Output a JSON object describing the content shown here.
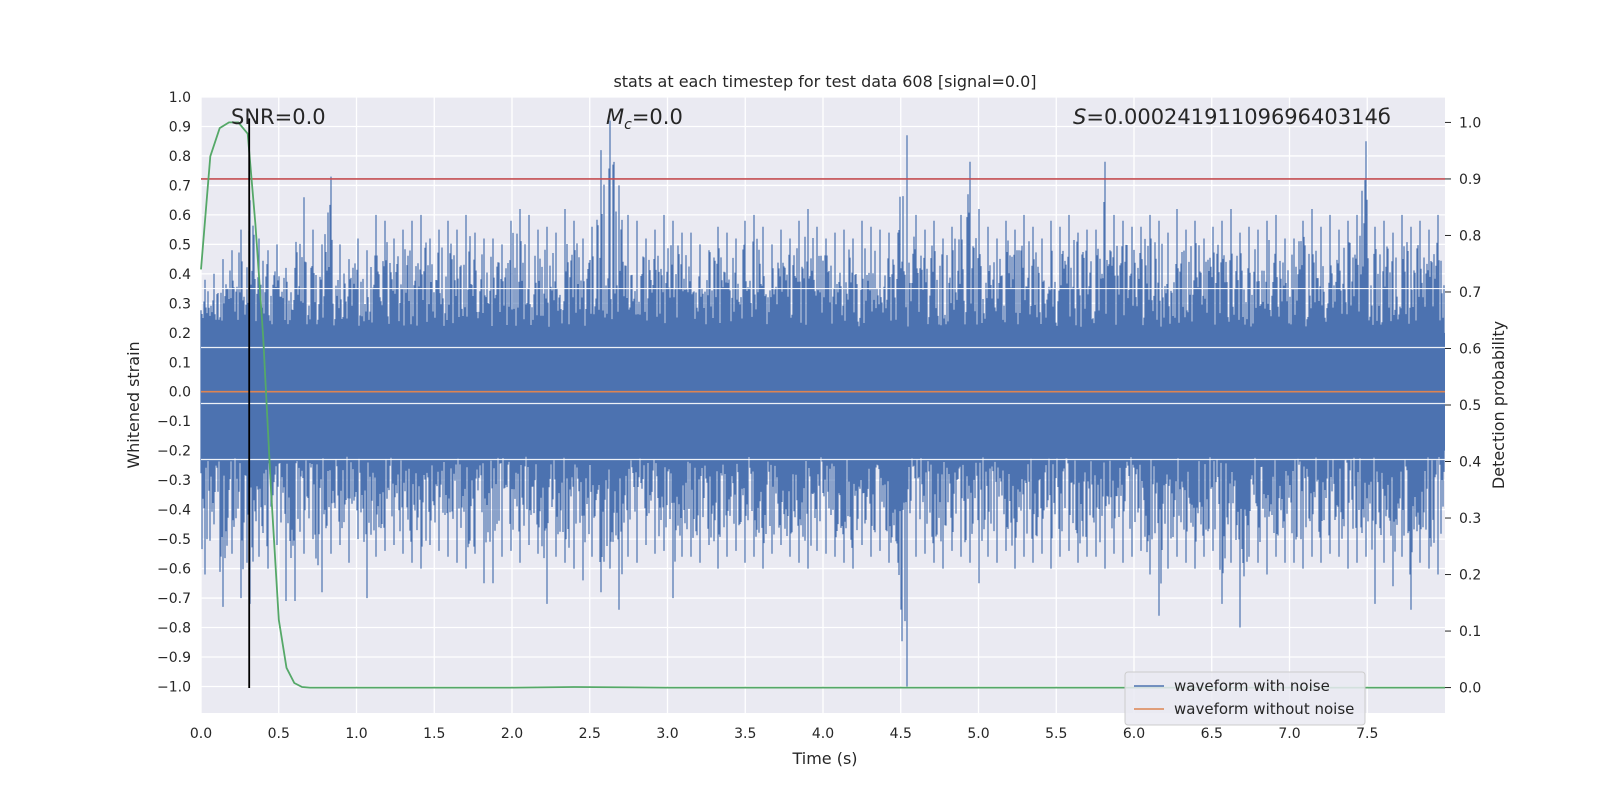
{
  "chart_data": {
    "type": "line",
    "title": "stats at each timestep for test data 608 [signal=0.0]",
    "xlabel": "Time (s)",
    "ylabel": "Whitened strain",
    "y2label": "Detection probability",
    "xlim": [
      0.0,
      8.0
    ],
    "ylim": [
      -1.09,
      1.0
    ],
    "y2lim": [
      -0.045,
      1.045
    ],
    "xticks": [
      "0.0",
      "0.5",
      "1.0",
      "1.5",
      "2.0",
      "2.5",
      "3.0",
      "3.5",
      "4.0",
      "4.5",
      "5.0",
      "5.5",
      "6.0",
      "6.5",
      "7.0",
      "7.5"
    ],
    "yticks": [
      "1.0",
      "0.9",
      "0.8",
      "0.7",
      "0.6",
      "0.5",
      "0.4",
      "0.3",
      "0.2",
      "0.1",
      "0.0",
      "−0.1",
      "−0.2",
      "−0.3",
      "−0.4",
      "−0.5",
      "−0.6",
      "−0.7",
      "−0.8",
      "−0.9",
      "−1.0"
    ],
    "y2ticks": [
      "0.0",
      "0.1",
      "0.2",
      "0.3",
      "0.4",
      "0.5",
      "0.6",
      "0.7",
      "0.8",
      "0.9",
      "1.0"
    ],
    "annotations": {
      "snr": "SNR=0.0",
      "mc_symbol": "M",
      "mc_sub": "c",
      "mc_rest": "=0.0",
      "s_symbol": "S",
      "s_rest": "=0.0002419110969640314б"
    },
    "threshold": {
      "probability": 0.9,
      "color": "#c44e52"
    },
    "marker_time": 0.31,
    "series": [
      {
        "name": "waveform with noise",
        "color": "#4c72b0",
        "description": "whitened strain, dense noise band",
        "envelope_top": [
          0.38,
          0.4,
          0.45,
          0.48,
          0.55,
          0.65,
          0.52,
          0.48,
          0.5,
          0.42,
          0.66,
          0.55,
          0.5,
          0.73,
          0.5,
          0.45,
          0.52,
          0.48,
          0.6,
          0.58,
          0.52,
          0.55,
          0.58,
          0.6,
          0.52,
          0.55,
          0.58,
          0.55,
          0.6,
          0.54,
          0.52,
          0.5,
          0.58,
          0.62,
          0.6,
          0.55,
          0.56,
          0.54,
          0.62,
          0.58,
          0.52,
          0.56,
          0.82,
          0.92,
          0.7,
          0.6,
          0.58,
          0.52,
          0.55,
          0.6,
          0.58,
          0.54,
          0.5,
          0.48,
          0.56,
          0.54,
          0.52,
          0.58,
          0.6,
          0.56,
          0.5,
          0.55,
          0.52,
          0.58,
          0.62,
          0.56,
          0.52,
          0.54,
          0.55,
          0.52,
          0.58,
          0.56,
          0.55,
          0.54,
          0.87,
          0.6,
          0.55,
          0.58,
          0.52,
          0.56,
          0.6,
          0.78,
          0.62,
          0.56,
          0.52,
          0.58,
          0.55,
          0.6,
          0.56,
          0.52,
          0.58,
          0.56,
          0.6,
          0.54,
          0.55,
          0.78,
          0.6,
          0.58,
          0.56,
          0.56,
          0.6,
          0.58,
          0.54,
          0.62,
          0.55,
          0.58,
          0.52,
          0.56,
          0.58,
          0.62,
          0.54,
          0.56,
          0.55,
          0.58,
          0.6,
          0.52,
          0.58,
          0.62,
          0.56,
          0.6,
          0.55,
          0.58,
          0.6,
          0.85,
          0.56,
          0.58,
          0.54,
          0.6,
          0.56,
          0.58,
          0.55,
          0.6
        ],
        "envelope_bottom": [
          -0.62,
          -0.45,
          -0.73,
          -0.55,
          -0.7,
          -0.72,
          -0.56,
          -0.6,
          -0.52,
          -0.71,
          -0.55,
          -0.5,
          -0.68,
          -0.55,
          -0.52,
          -0.58,
          -0.5,
          -0.7,
          -0.56,
          -0.54,
          -0.52,
          -0.55,
          -0.58,
          -0.6,
          -0.52,
          -0.54,
          -0.56,
          -0.58,
          -0.6,
          -0.55,
          -0.65,
          -0.56,
          -0.54,
          -0.58,
          -0.52,
          -0.55,
          -0.72,
          -0.56,
          -0.58,
          -0.6,
          -0.64,
          -0.56,
          -0.68,
          -0.6,
          -0.74,
          -0.56,
          -0.58,
          -0.52,
          -0.55,
          -0.54,
          -0.7,
          -0.56,
          -0.58,
          -0.52,
          -0.6,
          -0.56,
          -0.54,
          -0.58,
          -0.56,
          -0.6,
          -0.55,
          -0.52,
          -0.56,
          -0.58,
          -0.6,
          -0.54,
          -0.55,
          -0.56,
          -0.58,
          -0.6,
          -0.52,
          -0.56,
          -0.54,
          -0.58,
          -1.0,
          -0.56,
          -0.55,
          -0.58,
          -0.6,
          -0.54,
          -0.56,
          -0.58,
          -0.65,
          -0.56,
          -0.58,
          -0.54,
          -0.6,
          -0.56,
          -0.58,
          -0.55,
          -0.6,
          -0.56,
          -0.54,
          -0.58,
          -0.56,
          -0.6,
          -0.55,
          -0.58,
          -0.56,
          -0.54,
          -0.62,
          -0.76,
          -0.6,
          -0.56,
          -0.58,
          -0.6,
          -0.56,
          -0.54,
          -0.72,
          -0.58,
          -0.8,
          -0.56,
          -0.58,
          -0.62,
          -0.56,
          -0.58,
          -0.6,
          -0.56,
          -0.58,
          -0.55,
          -0.56,
          -0.6,
          -0.58,
          -0.56,
          -0.72,
          -0.58,
          -0.66,
          -0.56,
          -0.74,
          -0.58,
          -0.6,
          -0.62
        ]
      },
      {
        "name": "waveform without noise",
        "color": "#dd8452",
        "description": "flat at 0.0",
        "y": 0.0
      },
      {
        "name": "detection probability",
        "color": "#55a868",
        "axis": "right",
        "x": [
          0.0,
          0.06,
          0.12,
          0.18,
          0.24,
          0.3,
          0.35,
          0.4,
          0.45,
          0.5,
          0.55,
          0.6,
          0.65,
          0.7,
          1.0,
          2.0,
          2.4,
          3.0,
          4.0,
          5.0,
          6.0,
          7.0,
          8.0
        ],
        "y": [
          0.74,
          0.94,
          0.99,
          1.0,
          1.0,
          0.98,
          0.82,
          0.62,
          0.35,
          0.12,
          0.035,
          0.008,
          0.001,
          0.0,
          0.0,
          0.0,
          0.001,
          0.0,
          0.0,
          0.0,
          0.0,
          0.0,
          0.0
        ]
      }
    ],
    "legend": {
      "placement": "lower-right",
      "entries": [
        "waveform with noise",
        "waveform without noise"
      ]
    },
    "grid": true
  }
}
